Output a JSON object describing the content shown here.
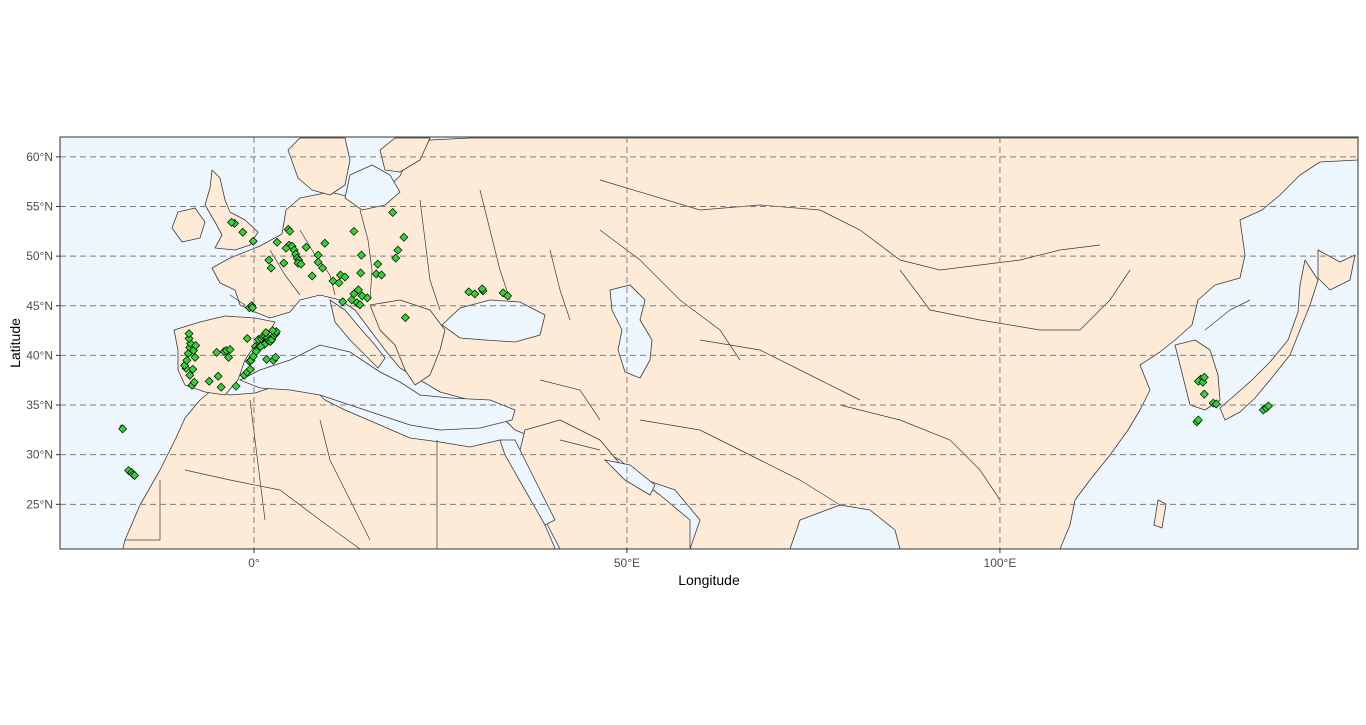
{
  "chart_data": {
    "type": "scatter",
    "map": true,
    "xlabel": "Longitude",
    "ylabel": "Latitude",
    "xlim": [
      -26,
      148
    ],
    "ylim": [
      20.5,
      62
    ],
    "x_ticks": [
      {
        "value": 0,
        "label": "0°"
      },
      {
        "value": 50,
        "label": "50°E"
      },
      {
        "value": 100,
        "label": "100°E"
      }
    ],
    "y_ticks": [
      {
        "value": 25,
        "label": "25°N"
      },
      {
        "value": 30,
        "label": "30°N"
      },
      {
        "value": 35,
        "label": "35°N"
      },
      {
        "value": 40,
        "label": "40°N"
      },
      {
        "value": 45,
        "label": "45°N"
      },
      {
        "value": 50,
        "label": "50°N"
      },
      {
        "value": 55,
        "label": "55°N"
      },
      {
        "value": 60,
        "label": "60°N"
      }
    ],
    "grid": "dashed",
    "colors": {
      "ocean": "#eef6fd",
      "land": "#fdebd7",
      "borders": "#3b3b3b",
      "points": "#32d435",
      "point_outline": "#000000",
      "grid": "#7f7f7f"
    },
    "marker": "diamond",
    "points": [
      [
        -17.6,
        32.6
      ],
      [
        -16.8,
        28.4
      ],
      [
        -16.4,
        28.2
      ],
      [
        -16.2,
        28.0
      ],
      [
        -16.0,
        27.9
      ],
      [
        -9.1,
        38.7
      ],
      [
        -9.3,
        39.0
      ],
      [
        -9.0,
        39.5
      ],
      [
        -8.8,
        40.2
      ],
      [
        -8.6,
        40.8
      ],
      [
        -8.5,
        41.2
      ],
      [
        -8.7,
        41.7
      ],
      [
        -8.7,
        42.2
      ],
      [
        -8.3,
        37.0
      ],
      [
        -8.0,
        37.3
      ],
      [
        -8.6,
        38.0
      ],
      [
        -8.2,
        38.6
      ],
      [
        -7.9,
        39.8
      ],
      [
        -8.1,
        40.5
      ],
      [
        -7.8,
        41.0
      ],
      [
        -6.0,
        37.4
      ],
      [
        -4.8,
        37.9
      ],
      [
        -4.4,
        36.8
      ],
      [
        -5.0,
        40.3
      ],
      [
        -4.0,
        40.4
      ],
      [
        -3.7,
        40.5
      ],
      [
        -3.2,
        40.6
      ],
      [
        -3.4,
        39.8
      ],
      [
        -2.4,
        36.9
      ],
      [
        -1.3,
        38.0
      ],
      [
        -0.9,
        38.3
      ],
      [
        -0.5,
        38.6
      ],
      [
        -0.6,
        39.4
      ],
      [
        -0.4,
        39.5
      ],
      [
        0.2,
        40.9
      ],
      [
        0.5,
        40.7
      ],
      [
        0.8,
        41.2
      ],
      [
        0.6,
        41.6
      ],
      [
        1.0,
        41.7
      ],
      [
        1.2,
        41.9
      ],
      [
        1.5,
        41.9
      ],
      [
        1.8,
        41.8
      ],
      [
        2.0,
        41.5
      ],
      [
        2.2,
        41.4
      ],
      [
        2.4,
        41.6
      ],
      [
        2.7,
        42.0
      ],
      [
        2.9,
        42.2
      ],
      [
        3.0,
        42.4
      ],
      [
        2.5,
        42.5
      ],
      [
        1.6,
        42.3
      ],
      [
        -0.9,
        41.7
      ],
      [
        1.4,
        41.1
      ],
      [
        0.9,
        40.9
      ],
      [
        0.3,
        40.4
      ],
      [
        -0.1,
        39.9
      ],
      [
        1.7,
        39.6
      ],
      [
        2.6,
        39.5
      ],
      [
        2.9,
        39.8
      ],
      [
        -0.6,
        44.8
      ],
      [
        -0.3,
        45.0
      ],
      [
        -0.2,
        44.8
      ],
      [
        2.3,
        48.8
      ],
      [
        2.0,
        49.6
      ],
      [
        4.0,
        49.3
      ],
      [
        4.7,
        51.1
      ],
      [
        5.1,
        51.0
      ],
      [
        5.4,
        50.6
      ],
      [
        5.6,
        50.2
      ],
      [
        5.8,
        49.8
      ],
      [
        6.0,
        49.6
      ],
      [
        5.9,
        49.3
      ],
      [
        6.3,
        49.2
      ],
      [
        4.3,
        50.8
      ],
      [
        4.6,
        52.7
      ],
      [
        4.8,
        52.5
      ],
      [
        3.1,
        51.4
      ],
      [
        7.0,
        50.9
      ],
      [
        8.6,
        50.1
      ],
      [
        9.5,
        51.3
      ],
      [
        8.6,
        49.4
      ],
      [
        9.2,
        48.8
      ],
      [
        7.8,
        48.0
      ],
      [
        11.6,
        48.1
      ],
      [
        10.6,
        47.5
      ],
      [
        11.4,
        47.3
      ],
      [
        12.2,
        47.9
      ],
      [
        14.3,
        48.3
      ],
      [
        14.0,
        46.6
      ],
      [
        13.4,
        46.2
      ],
      [
        14.5,
        46.0
      ],
      [
        15.2,
        45.8
      ],
      [
        13.1,
        45.6
      ],
      [
        13.8,
        45.3
      ],
      [
        14.2,
        45.1
      ],
      [
        11.9,
        45.4
      ],
      [
        13.4,
        52.5
      ],
      [
        16.4,
        48.2
      ],
      [
        14.4,
        50.1
      ],
      [
        17.1,
        48.1
      ],
      [
        16.6,
        49.2
      ],
      [
        19.0,
        49.8
      ],
      [
        19.3,
        50.6
      ],
      [
        20.1,
        51.9
      ],
      [
        18.6,
        54.4
      ],
      [
        -2.6,
        53.3
      ],
      [
        -3.0,
        53.4
      ],
      [
        -1.5,
        52.4
      ],
      [
        -0.1,
        51.5
      ],
      [
        20.3,
        43.8
      ],
      [
        28.8,
        46.4
      ],
      [
        29.6,
        46.2
      ],
      [
        30.7,
        46.5
      ],
      [
        30.6,
        46.7
      ],
      [
        33.4,
        46.3
      ],
      [
        34.0,
        46.0
      ],
      [
        126.9,
        37.6
      ],
      [
        126.6,
        37.4
      ],
      [
        127.2,
        37.3
      ],
      [
        127.4,
        37.8
      ],
      [
        126.4,
        33.3
      ],
      [
        126.6,
        33.5
      ],
      [
        127.4,
        36.1
      ],
      [
        128.6,
        35.2
      ],
      [
        129.0,
        35.1
      ],
      [
        135.3,
        34.5
      ],
      [
        135.7,
        34.7
      ],
      [
        136.0,
        34.9
      ]
    ]
  }
}
